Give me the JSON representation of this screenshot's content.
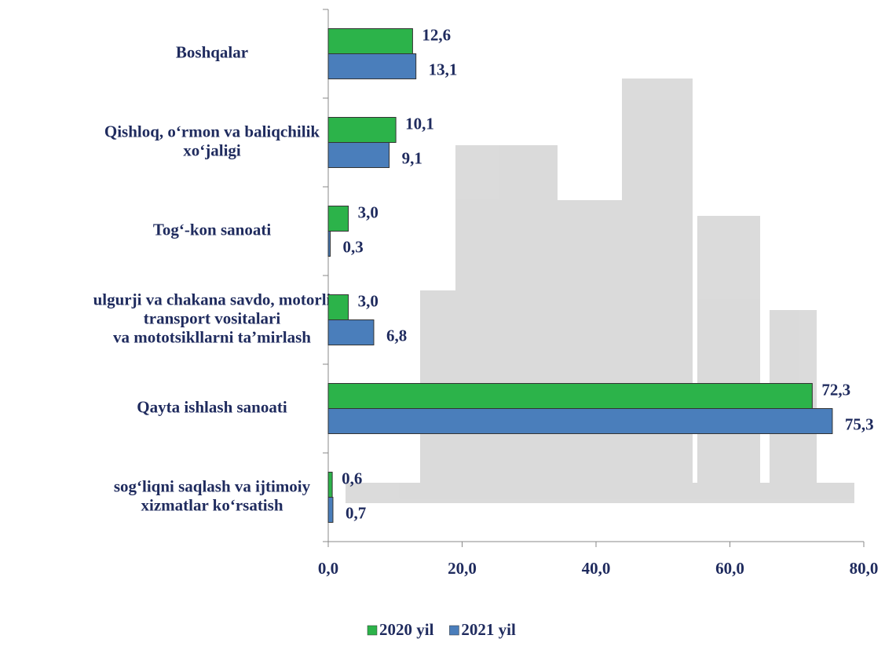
{
  "chart_data": {
    "type": "bar",
    "orientation": "horizontal",
    "categories": [
      [
        "Boshqalar"
      ],
      [
        "Qishloq, o‘rmon va baliqchilik",
        "xo‘jaligi"
      ],
      [
        "Tog‘-kon sanoati"
      ],
      [
        "ulgurji va chakana savdo, motorli",
        "transport vositalari",
        "va mototsikllarni ta’mirlash"
      ],
      [
        "Qayta ishlash sanoati"
      ],
      [
        "sog‘liqni saqlash va ijtimoiy",
        "xizmatlar ko‘rsatish"
      ]
    ],
    "series": [
      {
        "name": "2020 yil",
        "color": "#2cb34a",
        "values": [
          12.6,
          10.1,
          3.0,
          3.0,
          72.3,
          0.6
        ],
        "value_labels": [
          "12,6",
          "10,1",
          "3,0",
          "3,0",
          "72,3",
          "0,6"
        ]
      },
      {
        "name": "2021 yil",
        "color": "#4a7ebb",
        "values": [
          13.1,
          9.1,
          0.3,
          6.8,
          75.3,
          0.7
        ],
        "value_labels": [
          "13,1",
          "9,1",
          "0,3",
          "6,8",
          "75,3",
          "0,7"
        ]
      }
    ],
    "xlim": [
      0,
      80
    ],
    "xticks": [
      {
        "value": 0,
        "label": "0,0"
      },
      {
        "value": 20,
        "label": "20,0"
      },
      {
        "value": 40,
        "label": "40,0"
      },
      {
        "value": 60,
        "label": "60,0"
      },
      {
        "value": 80,
        "label": "80,0"
      }
    ],
    "legend": "bottom"
  }
}
